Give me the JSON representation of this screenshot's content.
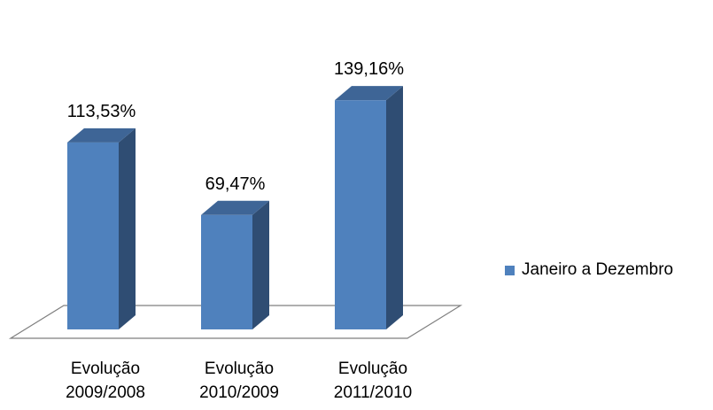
{
  "chart_data": {
    "type": "bar",
    "categories": [
      [
        "Evolução",
        "2009/2008"
      ],
      [
        "Evolução",
        "2010/2009"
      ],
      [
        "Evolução",
        "2011/2010"
      ]
    ],
    "series": [
      {
        "name": "Janeiro a Dezembro",
        "values": [
          113.53,
          69.47,
          139.16
        ],
        "labels": [
          "113,53%",
          "69,47%",
          "139,16%"
        ]
      }
    ],
    "style": "3d-column",
    "grid": false,
    "legend_position": "right"
  },
  "colors": {
    "bar_front": "#4f81bd",
    "bar_side": "#2f4d73",
    "bar_top": "#3e6596",
    "floor_stroke": "#7f7f7f"
  }
}
